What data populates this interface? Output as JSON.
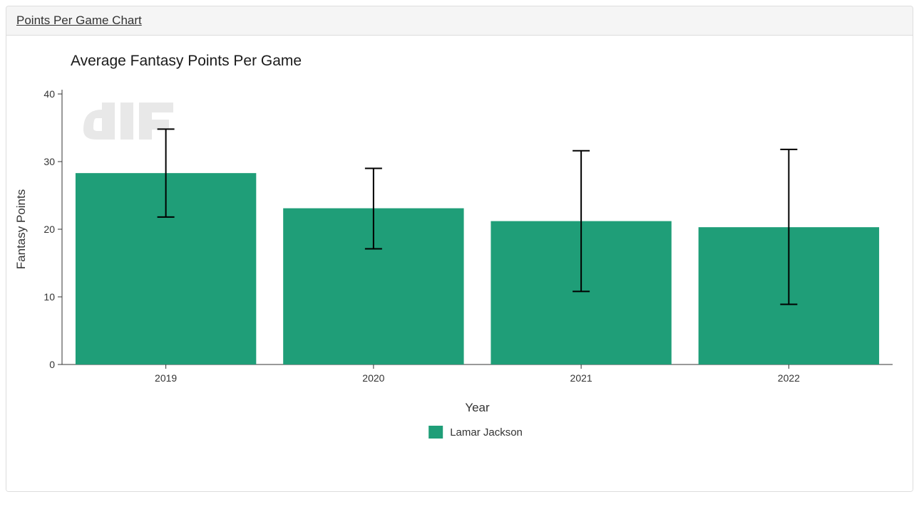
{
  "panel": {
    "header_link": "Points Per Game Chart"
  },
  "chart": {
    "type": "bar",
    "title": "Average Fantasy Points Per Game",
    "title_fontsize": 21,
    "xlabel": "Year",
    "ylabel": "Fantasy Points",
    "label_fontsize": 17,
    "tick_fontsize": 14,
    "categories": [
      "2019",
      "2020",
      "2021",
      "2022"
    ],
    "values": [
      28.3,
      23.1,
      21.2,
      20.3
    ],
    "error_low": [
      21.8,
      17.1,
      10.8,
      8.9
    ],
    "error_high": [
      34.8,
      29.0,
      31.6,
      31.8
    ],
    "bar_color": "#1f9e78",
    "error_color": "#000000",
    "error_linewidth": 2,
    "error_capwidth": 24,
    "ylim": [
      0,
      40
    ],
    "ytick_step": 10,
    "background_color": "#ffffff",
    "axis_color": "#333333",
    "bar_width_ratio": 0.87,
    "legend": {
      "items": [
        {
          "label": "Lamar Jackson",
          "color": "#1f9e78"
        }
      ]
    },
    "watermark_color": "#e8e8e8"
  }
}
